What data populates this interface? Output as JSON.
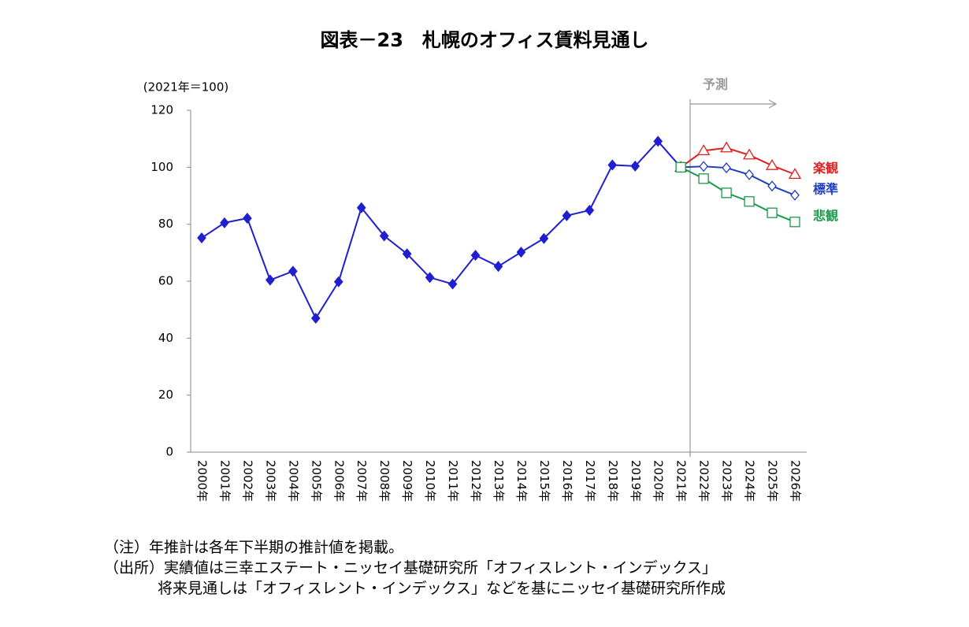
{
  "chart_data": {
    "type": "line",
    "title": "図表－23　札幌のオフィス賃料見通し",
    "y_label": "(2021年＝100)",
    "annotation": "予測",
    "categories": [
      "2000年",
      "2001年",
      "2002年",
      "2003年",
      "2004年",
      "2005年",
      "2006年",
      "2007年",
      "2008年",
      "2009年",
      "2010年",
      "2011年",
      "2012年",
      "2013年",
      "2014年",
      "2015年",
      "2016年",
      "2017年",
      "2018年",
      "2019年",
      "2020年",
      "2021年",
      "2022年",
      "2023年",
      "2024年",
      "2025年",
      "2026年"
    ],
    "series": [
      {
        "color": "#1f1fd0",
        "marker": "diamond",
        "marker_fill": "#1f1fd0",
        "values": [
          75.2,
          80.5,
          82.1,
          60.4,
          63.5,
          47.0,
          59.8,
          85.8,
          75.9,
          69.6,
          61.3,
          59.0,
          69.1,
          65.2,
          70.2,
          75.0,
          83.0,
          84.9,
          100.8,
          100.4,
          109.1,
          100,
          null,
          null,
          null,
          null,
          null
        ]
      },
      {
        "name": "楽観",
        "color": "#e02020",
        "marker": "triangle",
        "marker_fill": "#ffffff",
        "values": [
          null,
          null,
          null,
          null,
          null,
          null,
          null,
          null,
          null,
          null,
          null,
          null,
          null,
          null,
          null,
          null,
          null,
          null,
          null,
          null,
          null,
          100,
          105.8,
          106.8,
          104.3,
          100.6,
          97.5
        ]
      },
      {
        "name": "標準",
        "color": "#1f3fc0",
        "marker": "diamond",
        "marker_fill": "#ffffff",
        "values": [
          null,
          null,
          null,
          null,
          null,
          null,
          null,
          null,
          null,
          null,
          null,
          null,
          null,
          null,
          null,
          null,
          null,
          null,
          null,
          null,
          null,
          100,
          100.3,
          99.8,
          97.4,
          93.4,
          90.2
        ]
      },
      {
        "name": "悲観",
        "color": "#1a9a4a",
        "marker": "square",
        "marker_fill": "#ffffff",
        "values": [
          null,
          null,
          null,
          null,
          null,
          null,
          null,
          null,
          null,
          null,
          null,
          null,
          null,
          null,
          null,
          null,
          null,
          null,
          null,
          null,
          null,
          100,
          96.0,
          91.0,
          88.0,
          84.0,
          80.8
        ]
      }
    ],
    "ylim": [
      0,
      120
    ],
    "yticks": [
      0,
      20,
      40,
      60,
      80,
      100,
      120
    ],
    "notes": [
      "（注）年推計は各年下半期の推計値を掲載。",
      "（出所）実績値は三幸エステート・ニッセイ基礎研究所「オフィスレント・インデックス」",
      "将来見通しは「オフィスレント・インデックス」などを基にニッセイ基礎研究所作成"
    ]
  }
}
